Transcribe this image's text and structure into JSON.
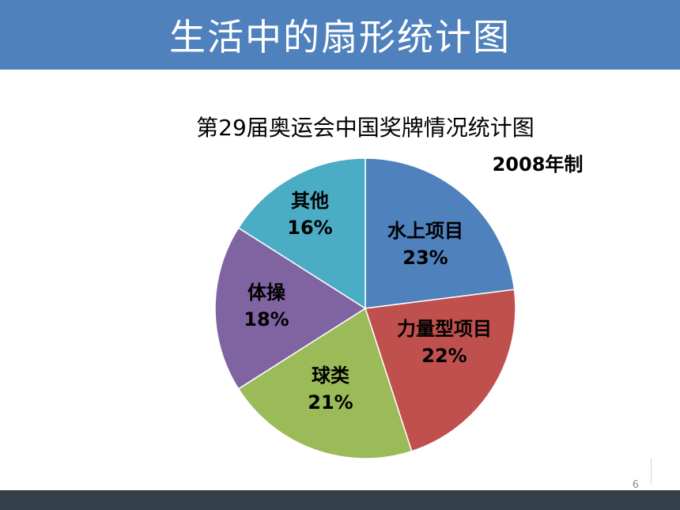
{
  "slide": {
    "title": "生活中的扇形统计图",
    "page_number": "6"
  },
  "colors": {
    "title_bar": "#4f81bd",
    "footer_bar": "#334049"
  },
  "chart_data": {
    "type": "pie",
    "title": "第29届奥运会中国奖牌情况统计图",
    "subtitle": "2008年制",
    "slices": [
      {
        "label": "水上项目",
        "value": 23,
        "value_label": "23%",
        "color": "#4f81bd"
      },
      {
        "label": "力量型项目",
        "value": 22,
        "value_label": "22%",
        "color": "#c0504d"
      },
      {
        "label": "球类",
        "value": 21,
        "value_label": "21%",
        "color": "#9bbb59"
      },
      {
        "label": "体操",
        "value": 18,
        "value_label": "18%",
        "color": "#8064a2"
      },
      {
        "label": "其他",
        "value": 16,
        "value_label": "16%",
        "color": "#4bacc6"
      }
    ],
    "start": "12 o'clock",
    "direction": "clockwise"
  }
}
